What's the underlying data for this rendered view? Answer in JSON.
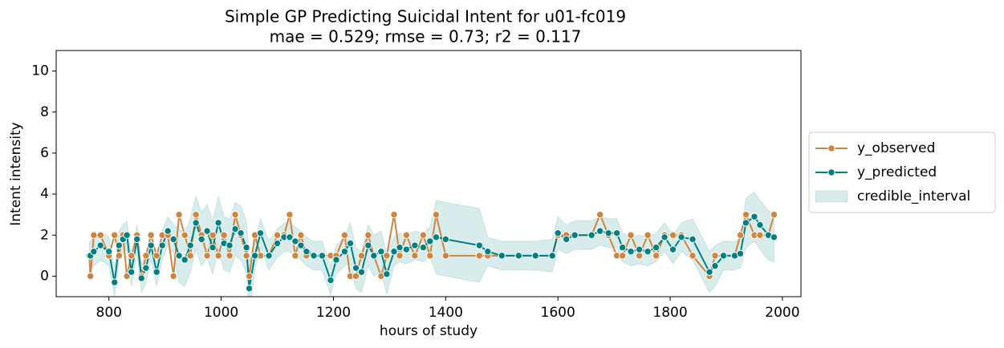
{
  "chart_data": {
    "type": "line",
    "title": "Simple GP Predicting Suicidal Intent for u01-fc019",
    "subtitle": "mae = 0.529; rmse = 0.73; r2 = 0.117",
    "x_label": "hours of study",
    "y_label": "Intent intensity",
    "x": [
      765,
      767,
      773,
      785,
      800,
      810,
      818,
      825,
      832,
      840,
      850,
      858,
      866,
      875,
      885,
      895,
      905,
      915,
      925,
      935,
      945,
      955,
      965,
      975,
      985,
      995,
      1005,
      1015,
      1025,
      1035,
      1045,
      1050,
      1060,
      1070,
      1085,
      1100,
      1112,
      1122,
      1132,
      1142,
      1152,
      1165,
      1180,
      1195,
      1205,
      1220,
      1230,
      1240,
      1250,
      1262,
      1272,
      1285,
      1295,
      1308,
      1318,
      1330,
      1345,
      1360,
      1372,
      1383,
      1400,
      1460,
      1475,
      1500,
      1530,
      1560,
      1590,
      1600,
      1615,
      1630,
      1660,
      1675,
      1690,
      1705,
      1715,
      1730,
      1745,
      1760,
      1775,
      1790,
      1805,
      1820,
      1840,
      1870,
      1880,
      1895,
      1915,
      1925,
      1935,
      1950,
      1960,
      1975,
      1985
    ],
    "series": [
      {
        "name": "y_observed",
        "color": "#cd853f",
        "values": [
          1,
          0,
          2,
          2,
          1,
          2,
          1,
          2,
          0,
          1,
          2,
          0,
          1,
          2,
          1,
          2,
          2,
          0,
          3,
          2,
          1,
          3,
          2,
          1,
          2,
          1,
          2,
          1,
          3,
          2,
          1,
          0,
          2,
          1,
          1,
          2,
          2,
          3,
          1,
          2,
          1,
          1,
          1,
          1,
          1,
          2,
          0,
          0,
          1,
          2,
          1,
          0,
          1,
          3,
          1,
          2,
          1,
          2,
          1,
          3,
          1,
          1,
          1,
          1,
          1,
          1,
          1,
          2,
          2,
          2,
          2,
          3,
          2,
          1,
          1,
          2,
          1,
          2,
          1,
          2,
          2,
          2,
          1,
          0,
          1,
          1,
          1,
          2,
          3,
          2,
          2,
          2,
          3
        ]
      },
      {
        "name": "y_predicted",
        "color": "#008080",
        "values": [
          1.0,
          1.0,
          1.2,
          1.5,
          1.2,
          -0.3,
          1.5,
          1.8,
          2.0,
          0.2,
          1.8,
          -0.1,
          0.4,
          1.5,
          0.2,
          1.5,
          2.2,
          1.8,
          1.0,
          0.8,
          1.5,
          2.6,
          1.8,
          2.2,
          1.4,
          2.6,
          1.6,
          1.5,
          2.3,
          2.1,
          1.4,
          -0.6,
          1.0,
          2.1,
          1.0,
          1.6,
          1.9,
          1.9,
          1.7,
          1.5,
          1.2,
          1.0,
          1.0,
          -0.2,
          0.8,
          1.2,
          1.6,
          0.4,
          0.2,
          1.5,
          1.0,
          1.2,
          0.1,
          1.2,
          1.4,
          1.3,
          1.5,
          1.4,
          1.7,
          1.9,
          1.8,
          1.5,
          1.2,
          1.0,
          1.0,
          1.0,
          1.0,
          2.1,
          1.8,
          2.0,
          2.0,
          2.2,
          2.1,
          2.1,
          1.4,
          1.2,
          1.3,
          1.2,
          1.4,
          1.9,
          1.3,
          1.9,
          1.8,
          0.2,
          0.5,
          1.0,
          1.0,
          1.1,
          2.6,
          2.9,
          2.5,
          2.0,
          1.9
        ]
      }
    ],
    "interval": {
      "name": "credible_interval",
      "color": "#008080",
      "lower": [
        0.3,
        0.3,
        0.5,
        0.8,
        0.5,
        -1.0,
        0.8,
        1.1,
        1.3,
        -0.5,
        1.1,
        -0.8,
        -0.3,
        0.8,
        -0.5,
        0.8,
        1.5,
        1.1,
        -0.3,
        -0.5,
        0.2,
        1.3,
        0.5,
        0.9,
        0.1,
        1.3,
        0.3,
        0.2,
        1.0,
        0.8,
        0.1,
        -1.9,
        0.3,
        1.4,
        0.3,
        0.9,
        1.2,
        1.2,
        1.0,
        0.8,
        0.5,
        0.3,
        0.3,
        -0.9,
        0.1,
        0.5,
        0.6,
        -0.6,
        -0.8,
        0.5,
        0,
        0.2,
        -0.9,
        0.5,
        0.7,
        0.6,
        0.8,
        0.7,
        1.0,
        0.1,
        0,
        -0.3,
        0.5,
        0.3,
        0.3,
        0.3,
        0.2,
        1.3,
        1.1,
        1.3,
        1.3,
        1.5,
        1.4,
        1.4,
        0.7,
        0.5,
        0.6,
        0.5,
        0.7,
        1.2,
        0.6,
        1.2,
        0.8,
        -0.8,
        -0.5,
        0.3,
        0.3,
        0.4,
        1.4,
        1.7,
        1.3,
        0.8,
        0.7
      ],
      "upper": [
        1.7,
        1.7,
        1.9,
        2.2,
        1.9,
        0.4,
        2.2,
        2.5,
        2.7,
        0.9,
        2.5,
        0.6,
        1.1,
        2.2,
        0.9,
        2.2,
        2.9,
        2.5,
        2.3,
        2.1,
        2.8,
        3.9,
        3.1,
        3.5,
        2.7,
        3.9,
        2.9,
        2.8,
        3.6,
        3.4,
        2.7,
        0.7,
        1.7,
        2.8,
        1.7,
        2.3,
        2.6,
        2.6,
        2.4,
        2.2,
        1.9,
        1.7,
        1.7,
        0.5,
        1.5,
        1.9,
        2.6,
        1.4,
        1.2,
        2.5,
        2,
        2.2,
        1.1,
        1.9,
        2.1,
        2.0,
        2.2,
        2.1,
        2.4,
        3.7,
        3.6,
        3.3,
        1.9,
        1.7,
        1.7,
        1.7,
        1.8,
        2.9,
        2.5,
        2.7,
        2.7,
        2.9,
        2.8,
        2.8,
        2.1,
        1.9,
        2.0,
        1.9,
        2.1,
        2.6,
        2.0,
        2.6,
        2.8,
        1.2,
        1.5,
        1.7,
        1.7,
        1.8,
        3.8,
        4.1,
        3.7,
        3.2,
        3.1
      ]
    },
    "xlim": [
      706,
      2033
    ],
    "ylim": [
      -1,
      11
    ],
    "xticks": [
      800,
      1000,
      1200,
      1400,
      1600,
      1800,
      2000
    ],
    "yticks": [
      0,
      2,
      4,
      6,
      8,
      10
    ],
    "legend": "outside right"
  }
}
